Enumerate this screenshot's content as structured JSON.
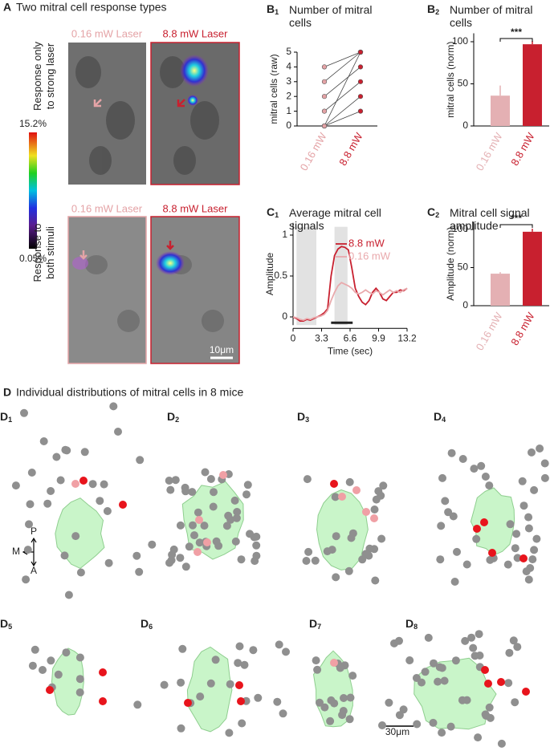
{
  "panel_a": {
    "label": "A",
    "title": "Two mitral cell response types",
    "column_labels": [
      "0.16 mW Laser",
      "8.8 mW Laser"
    ],
    "row_labels": [
      "Response only to strong laser",
      "Response to both stimuli"
    ],
    "colorbar_labels": [
      "15.2%",
      "0.05%"
    ],
    "scale_bar": "10μm"
  },
  "chart_data": [
    {
      "type": "paired",
      "label": {
        "letter": "B",
        "sub": "1"
      },
      "title": "Number of mitral cells",
      "categories": [
        "0.16 mW",
        "8.8 mW"
      ],
      "colors": [
        "#e4a3a6",
        "#c8202f"
      ],
      "ylabel": "mitral cells (raw)",
      "ylim": [
        0,
        5
      ],
      "yticks": [
        0,
        1,
        2,
        3,
        4,
        5
      ],
      "series": [
        {
          "values": [
            4,
            5
          ]
        },
        {
          "values": [
            3,
            5
          ]
        },
        {
          "values": [
            2,
            4
          ]
        },
        {
          "values": [
            1,
            3
          ]
        },
        {
          "values": [
            0,
            2
          ]
        },
        {
          "values": [
            0,
            1
          ]
        },
        {
          "values": [
            0,
            5
          ]
        }
      ]
    },
    {
      "type": "bar",
      "label": {
        "letter": "B",
        "sub": "2"
      },
      "title": "Number of mitral cells",
      "categories": [
        "0.16 mW",
        "8.8 mW"
      ],
      "colors": [
        "#e4b0b3",
        "#c8202f"
      ],
      "ylabel": "mitral cells (norm)",
      "values": [
        36,
        97
      ],
      "errors": [
        12,
        4
      ],
      "ylim": [
        0,
        110
      ],
      "yticks": [
        0,
        50,
        100
      ],
      "significance": "***"
    },
    {
      "type": "line",
      "label": {
        "letter": "C",
        "sub": "1"
      },
      "title": "Average mitral cell signals",
      "xlabel": "Time (sec)",
      "ylabel": "Amplitude",
      "x": [
        0,
        0.4,
        0.8,
        1.2,
        1.6,
        2,
        2.4,
        2.8,
        3.2,
        3.6,
        4,
        4.4,
        4.8,
        5.2,
        5.6,
        6,
        6.4,
        6.8,
        7.2,
        7.6,
        8,
        8.4,
        8.8,
        9.2,
        9.6,
        10,
        10.4,
        10.8,
        11.2,
        11.6,
        12,
        12.4,
        12.8,
        13.2
      ],
      "series": [
        {
          "name": "8.8 mW",
          "color": "#c8202f",
          "values": [
            0,
            -0.02,
            -0.05,
            -0.05,
            -0.03,
            -0.04,
            -0.02,
            0,
            0.02,
            0.05,
            0.1,
            0.5,
            0.75,
            0.83,
            0.86,
            0.85,
            0.82,
            0.6,
            0.35,
            0.25,
            0.18,
            0.15,
            0.2,
            0.3,
            0.35,
            0.3,
            0.22,
            0.2,
            0.25,
            0.3,
            0.3,
            0.33,
            0.32,
            0.35
          ]
        },
        {
          "name": "0.16 mW",
          "color": "#e9a9ac",
          "values": [
            0,
            -0.01,
            -0.03,
            -0.04,
            -0.02,
            -0.03,
            -0.01,
            0,
            0.01,
            0.03,
            0.08,
            0.2,
            0.3,
            0.38,
            0.42,
            0.4,
            0.38,
            0.35,
            0.3,
            0.28,
            0.3,
            0.33,
            0.3,
            0.28,
            0.32,
            0.3,
            0.27,
            0.3,
            0.33,
            0.3,
            0.32,
            0.3,
            0.33,
            0.35
          ]
        }
      ],
      "xlim": [
        0,
        13.2
      ],
      "xticks": [
        0,
        3.3,
        6.6,
        9.9,
        13.2
      ],
      "ylim": [
        -0.1,
        1.15
      ],
      "yticks": [
        0,
        0.5,
        1
      ],
      "shaded_regions": [
        [
          0.4,
          2.7
        ],
        [
          4.8,
          6.3
        ]
      ],
      "stimulus_bar": [
        4.4,
        6.9
      ]
    },
    {
      "type": "bar",
      "label": {
        "letter": "C",
        "sub": "2"
      },
      "title": "Mitral cell signal amplitude",
      "categories": [
        "0.16 mW",
        "8.8 mW"
      ],
      "colors": [
        "#e4b0b3",
        "#c8202f"
      ],
      "ylabel": "Amplitude (norm)",
      "values": [
        42,
        97
      ],
      "errors": [
        2,
        4
      ],
      "ylim": [
        0,
        110
      ],
      "yticks": [
        0,
        50,
        100
      ],
      "significance": "***"
    }
  ],
  "panel_d": {
    "label": "D",
    "title": "Individual distributions of mitral cells in 8 mice",
    "subpanels": [
      {
        "letter": "D",
        "sub": "1"
      },
      {
        "letter": "D",
        "sub": "2"
      },
      {
        "letter": "D",
        "sub": "3"
      },
      {
        "letter": "D",
        "sub": "4"
      },
      {
        "letter": "D",
        "sub": "5"
      },
      {
        "letter": "D",
        "sub": "6"
      },
      {
        "letter": "D",
        "sub": "7"
      },
      {
        "letter": "D",
        "sub": "8"
      }
    ],
    "compass": [
      "P",
      "M",
      "A"
    ],
    "scale_bar": "30μm"
  }
}
